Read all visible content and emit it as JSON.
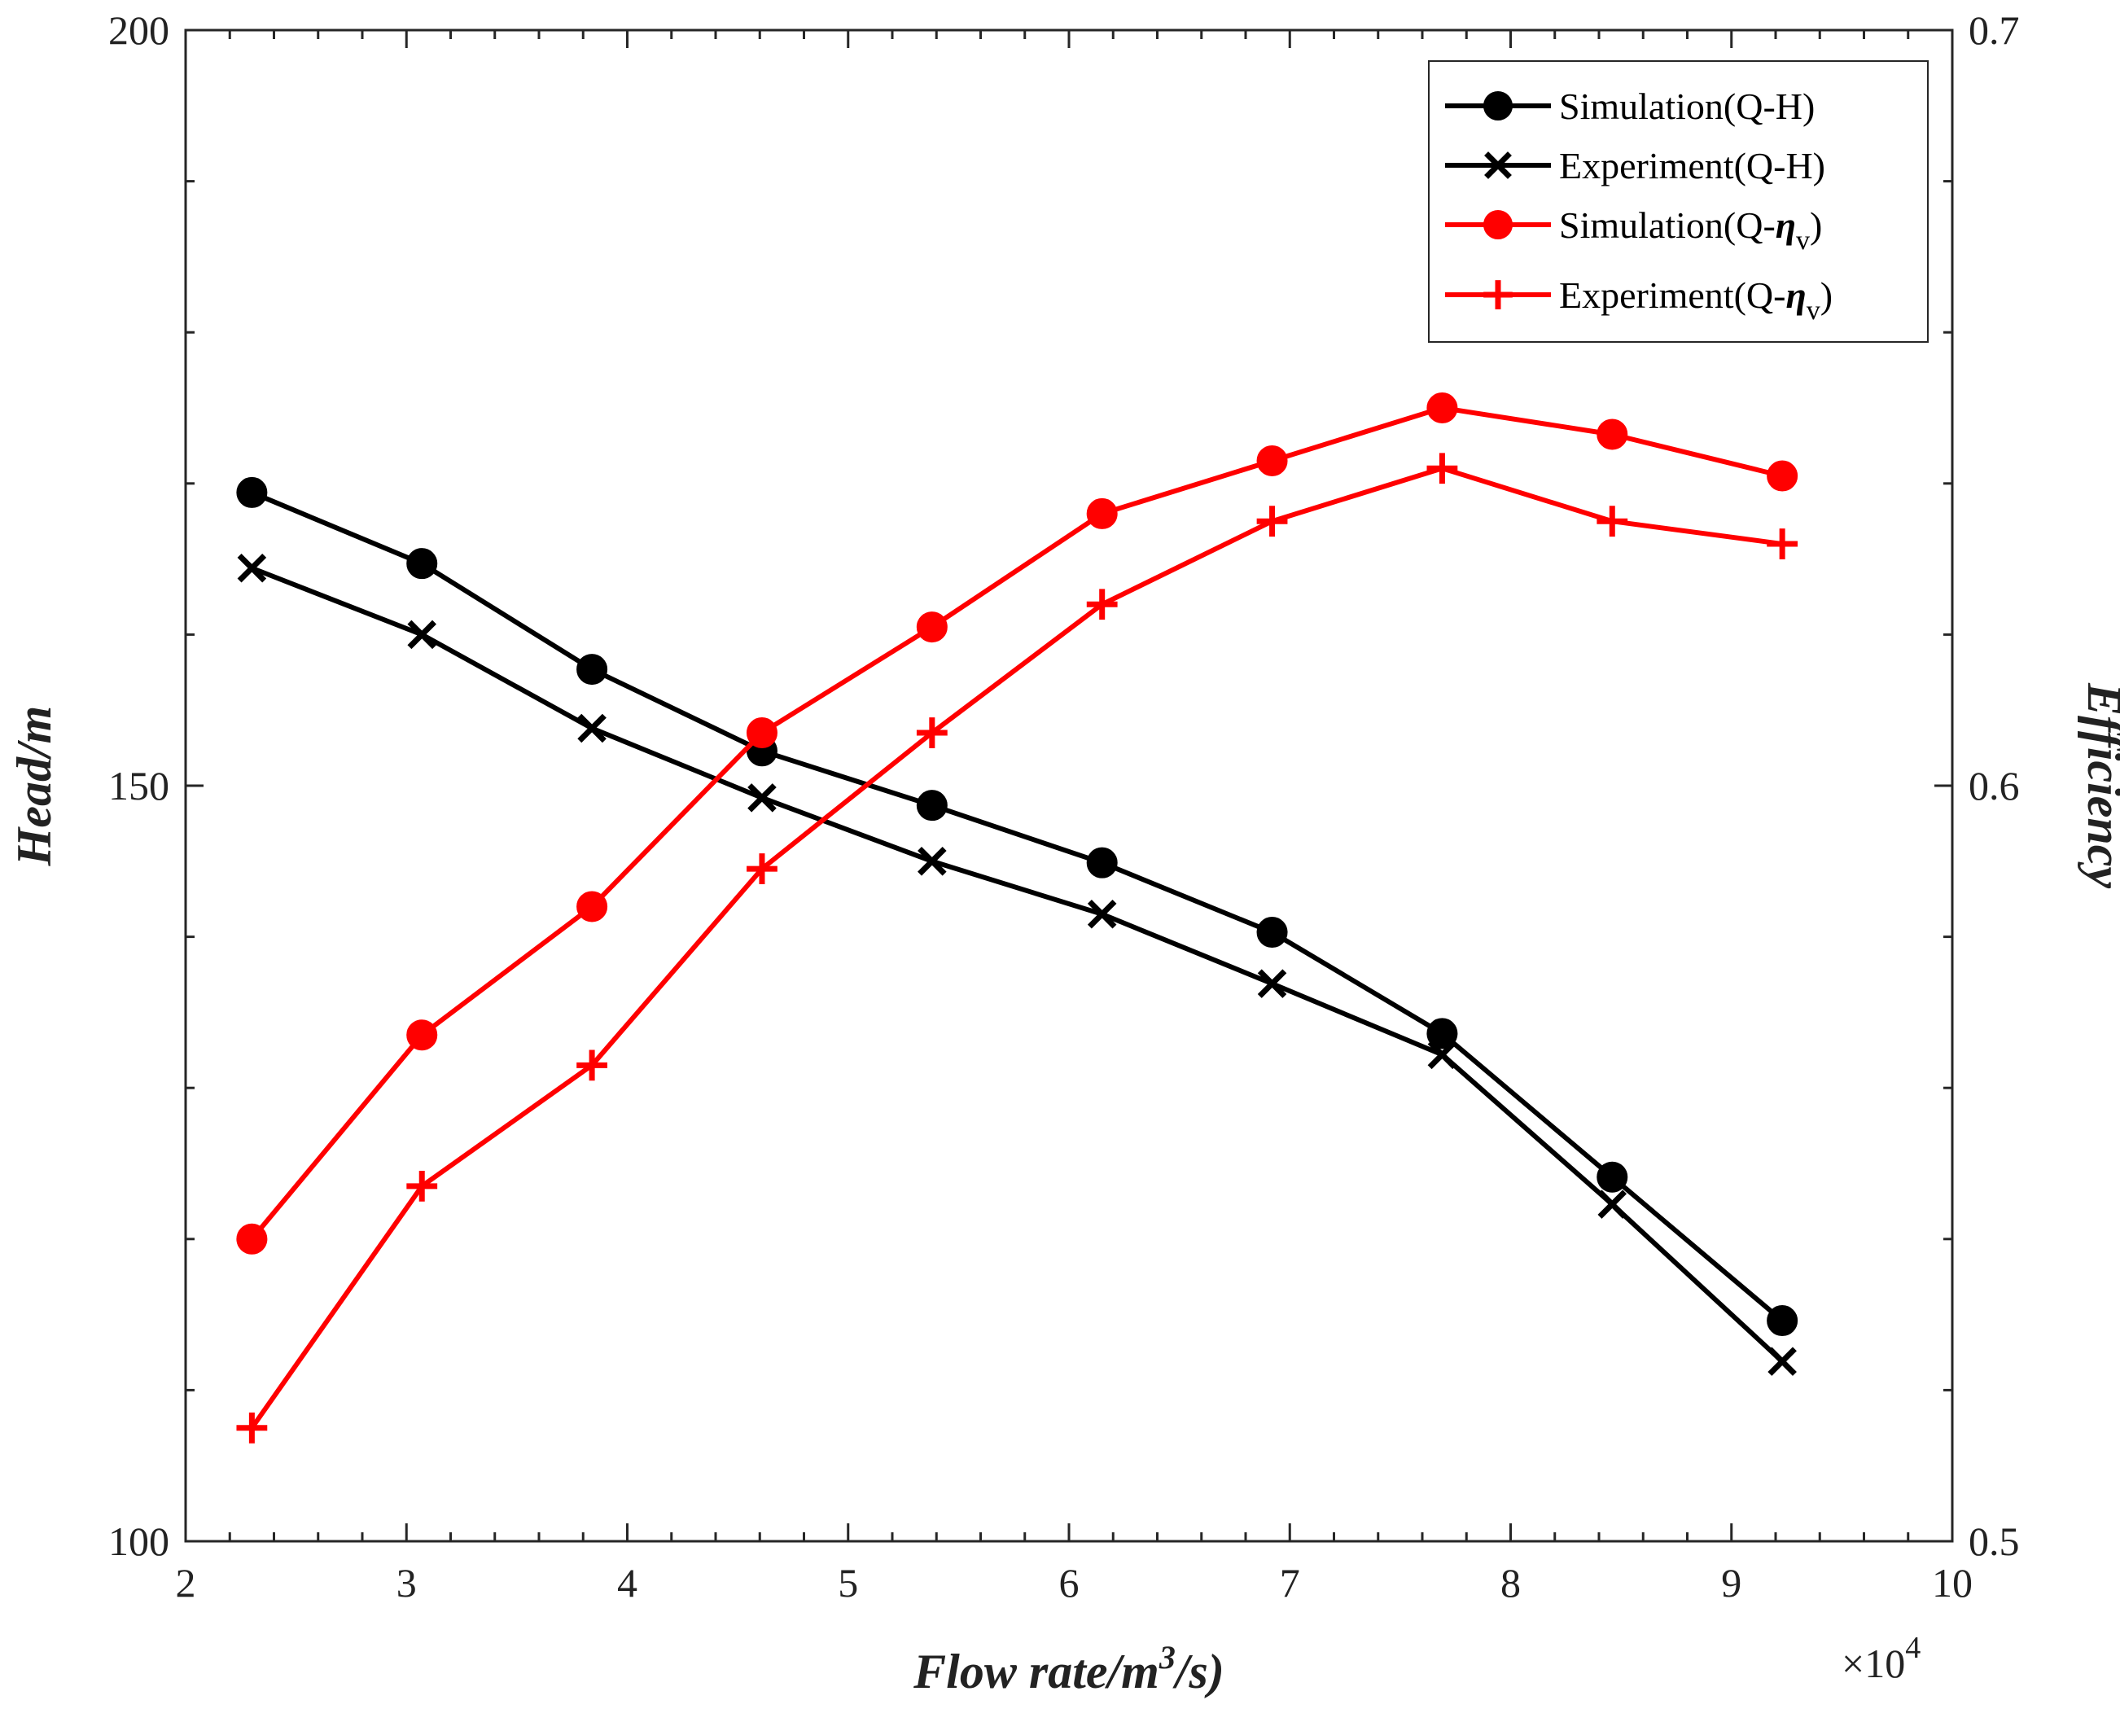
{
  "chart_data": {
    "type": "line",
    "x_multiplier_label": "×10",
    "x_multiplier_exponent": "4",
    "xlabel_parts": [
      "Flow rate/m",
      "3",
      "/s)"
    ],
    "ylabel_left": "Head/m",
    "ylabel_right": "Efficiency",
    "xlim": [
      2,
      10
    ],
    "ylim_left": [
      100,
      200
    ],
    "ylim_right": [
      0.5,
      0.7
    ],
    "x_ticks": [
      "2",
      "3",
      "4",
      "5",
      "6",
      "7",
      "8",
      "9",
      "10"
    ],
    "y_left_ticks": [
      "100",
      "150",
      "200"
    ],
    "y_right_ticks": [
      "0.5",
      "0.6",
      "0.7"
    ],
    "x": [
      2.3,
      3.07,
      3.84,
      4.61,
      5.38,
      6.15,
      6.92,
      7.69,
      8.46,
      9.23
    ],
    "series": [
      {
        "name": "Simulation(Q-H)",
        "axis": "left",
        "marker": "circle",
        "color": "#000000",
        "values": [
          169.4,
          164.7,
          157.7,
          152.3,
          148.7,
          144.9,
          140.3,
          133.6,
          124.1,
          114.6
        ]
      },
      {
        "name": "Experiment(Q-H)",
        "axis": "left",
        "marker": "x",
        "color": "#000000",
        "values": [
          164.4,
          160.0,
          153.8,
          149.2,
          145.0,
          141.5,
          136.9,
          132.2,
          122.3,
          111.9
        ]
      },
      {
        "name": "Simulation(Q-ηv)",
        "axis": "right",
        "marker": "circle",
        "color": "#ff0000",
        "values": [
          0.54,
          0.567,
          0.584,
          0.607,
          0.621,
          0.636,
          0.643,
          0.65,
          0.6465,
          0.641
        ]
      },
      {
        "name": "Experiment(Q-ηv)",
        "axis": "right",
        "marker": "plus",
        "color": "#ff0000",
        "values": [
          0.515,
          0.547,
          0.563,
          0.589,
          0.607,
          0.624,
          0.635,
          0.642,
          0.635,
          0.632
        ]
      }
    ],
    "legend": {
      "position": "top-right",
      "entries": [
        {
          "prefix": "Simulation(Q-H)",
          "symbol": "",
          "subscript": "",
          "suffix": ""
        },
        {
          "prefix": "Experiment(Q-H)",
          "symbol": "",
          "subscript": "",
          "suffix": ""
        },
        {
          "prefix": "Simulation(Q-",
          "symbol": "η",
          "subscript": "v",
          "suffix": ")"
        },
        {
          "prefix": "Experiment(Q-",
          "symbol": "η",
          "subscript": "v",
          "suffix": ")"
        }
      ]
    }
  }
}
